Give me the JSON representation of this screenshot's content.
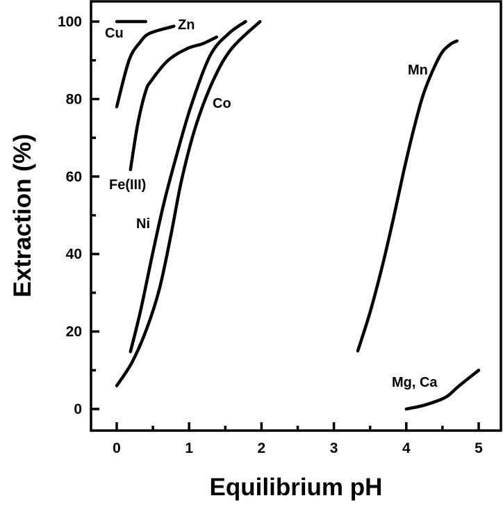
{
  "chart_data": {
    "type": "line",
    "title": "",
    "xlabel": "Equilibrium pH",
    "ylabel": "Extraction (%)",
    "xlim": [
      -0.35,
      5.35
    ],
    "ylim": [
      -6,
      105
    ],
    "xticks": [
      "0",
      "1",
      "2",
      "3",
      "4",
      "5"
    ],
    "yticks": [
      "0",
      "20",
      "40",
      "60",
      "80",
      "100"
    ],
    "grid": false,
    "legend": "none (inline labels)",
    "line_color": "#000000",
    "series": [
      {
        "name": "Cu",
        "x": [
          0,
          0.4
        ],
        "y": [
          100,
          100
        ]
      },
      {
        "name": "Zn",
        "x": [
          0,
          0.17,
          0.32,
          0.46,
          0.79
        ],
        "y": [
          78,
          90,
          94.6,
          97,
          98.8
        ]
      },
      {
        "name": "Fe(III)",
        "x": [
          0.19,
          0.29,
          0.4,
          0.48,
          0.71,
          0.97,
          1.19,
          1.38
        ],
        "y": [
          61.8,
          73.5,
          82,
          84.8,
          90,
          93,
          94.3,
          96
        ]
      },
      {
        "name": "Ni",
        "x": [
          0.19,
          0.33,
          0.49,
          0.65,
          0.83,
          1.03,
          1.29,
          1.54,
          1.78
        ],
        "y": [
          14.8,
          25.4,
          39.6,
          53,
          65.7,
          78.4,
          91.2,
          96.8,
          100
        ]
      },
      {
        "name": "Co",
        "x": [
          0,
          0.21,
          0.41,
          0.59,
          0.75,
          0.9,
          1.1,
          1.35,
          1.6,
          1.98
        ],
        "y": [
          6,
          12,
          20.5,
          31,
          45,
          59.4,
          73.5,
          85.5,
          93.3,
          100
        ]
      },
      {
        "name": "Mn",
        "x": [
          3.33,
          3.5,
          3.67,
          3.82,
          3.96,
          4.1,
          4.25,
          4.46,
          4.6,
          4.7
        ],
        "y": [
          15,
          25,
          37,
          49,
          61,
          72,
          82,
          91,
          94,
          95
        ]
      },
      {
        "name": "Mg, Ca",
        "x": [
          4.0,
          4.25,
          4.54,
          4.73,
          5.0
        ],
        "y": [
          0,
          1,
          3,
          6,
          10
        ]
      }
    ]
  }
}
